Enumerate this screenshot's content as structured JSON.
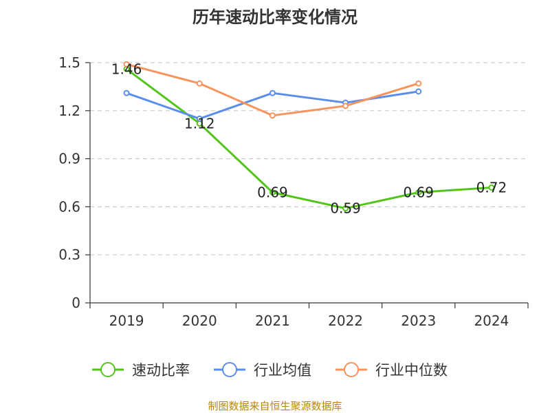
{
  "chart_data": {
    "type": "line",
    "title": "历年速动比率变化情况",
    "categories": [
      "2019",
      "2020",
      "2021",
      "2022",
      "2023",
      "2024"
    ],
    "ylim": [
      0,
      1.5
    ],
    "yticks": [
      "0",
      "0.3",
      "0.6",
      "0.9",
      "1.2",
      "1.5"
    ],
    "grid": true,
    "legend_position": "bottom",
    "series": [
      {
        "name": "速动比率",
        "color": "#52c41a",
        "values": [
          1.46,
          1.12,
          0.69,
          0.59,
          0.69,
          0.72
        ],
        "labels": [
          "1.46",
          "1.12",
          "0.69",
          "0.59",
          "0.69",
          "0.72"
        ]
      },
      {
        "name": "行业均值",
        "color": "#5b8def",
        "values": [
          1.31,
          1.15,
          1.31,
          1.25,
          1.32,
          null
        ]
      },
      {
        "name": "行业中位数",
        "color": "#f7935c",
        "values": [
          1.49,
          1.37,
          1.17,
          1.23,
          1.37,
          null
        ]
      }
    ],
    "source": "制图数据来自恒生聚源数据库"
  }
}
